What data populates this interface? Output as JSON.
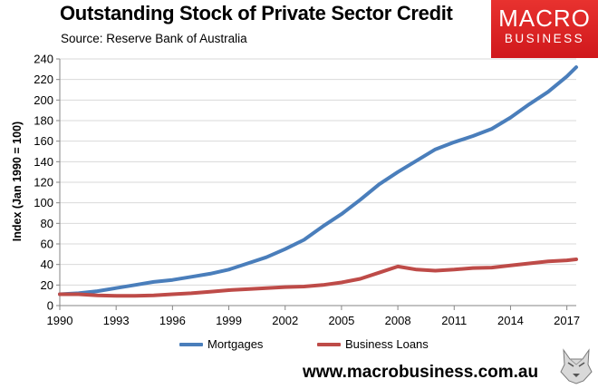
{
  "header": {
    "title": "Outstanding Stock of Private Sector Credit",
    "subtitle": "Source: Reserve Bank of Australia"
  },
  "logo": {
    "line1": "MACRO",
    "line2": "BUSINESS"
  },
  "footer": {
    "website": "www.macrobusiness.com.au"
  },
  "colors": {
    "mortgages": "#4a7ebb",
    "business_loans": "#be4b48",
    "logo_red": "#d7191e"
  },
  "chart_data": {
    "type": "line",
    "title": "Outstanding Stock of Private Sector Credit",
    "ylabel": "Index (Jan 1990 = 100)",
    "xlabel": "",
    "xlim": [
      1990,
      2017.5
    ],
    "ylim": [
      0,
      240
    ],
    "x_ticks": [
      "1990",
      "1993",
      "1996",
      "1999",
      "2002",
      "2005",
      "2008",
      "2011",
      "2014",
      "2017"
    ],
    "y_ticks": [
      "0",
      "20",
      "40",
      "60",
      "80",
      "100",
      "120",
      "140",
      "160",
      "180",
      "200",
      "220",
      "240"
    ],
    "grid": "horizontal",
    "legend_position": "bottom",
    "series": [
      {
        "name": "Mortgages",
        "color": "#4a7ebb",
        "x": [
          1990,
          1991,
          1992,
          1993,
          1994,
          1995,
          1996,
          1997,
          1998,
          1999,
          2000,
          2001,
          2002,
          2003,
          2004,
          2005,
          2006,
          2007,
          2008,
          2009,
          2010,
          2011,
          2012,
          2013,
          2014,
          2015,
          2016,
          2017,
          2017.5
        ],
        "values": [
          11,
          12,
          14,
          17,
          20,
          23,
          25,
          28,
          31,
          35,
          41,
          47,
          55,
          64,
          77,
          89,
          103,
          118,
          130,
          141,
          152,
          159,
          165,
          172,
          183,
          196,
          208,
          223,
          232
        ]
      },
      {
        "name": "Business Loans",
        "color": "#be4b48",
        "x": [
          1990,
          1991,
          1992,
          1993,
          1994,
          1995,
          1996,
          1997,
          1998,
          1999,
          2000,
          2001,
          2002,
          2003,
          2004,
          2005,
          2006,
          2007,
          2008,
          2009,
          2010,
          2011,
          2012,
          2013,
          2014,
          2015,
          2016,
          2017,
          2017.5
        ],
        "values": [
          11,
          11,
          10,
          9.5,
          9.5,
          10,
          11,
          12,
          13.5,
          15,
          16,
          17,
          18,
          18.5,
          20,
          22.5,
          26,
          32,
          38,
          35,
          34,
          35,
          36.5,
          37,
          39,
          41,
          43,
          44,
          45
        ]
      }
    ]
  }
}
